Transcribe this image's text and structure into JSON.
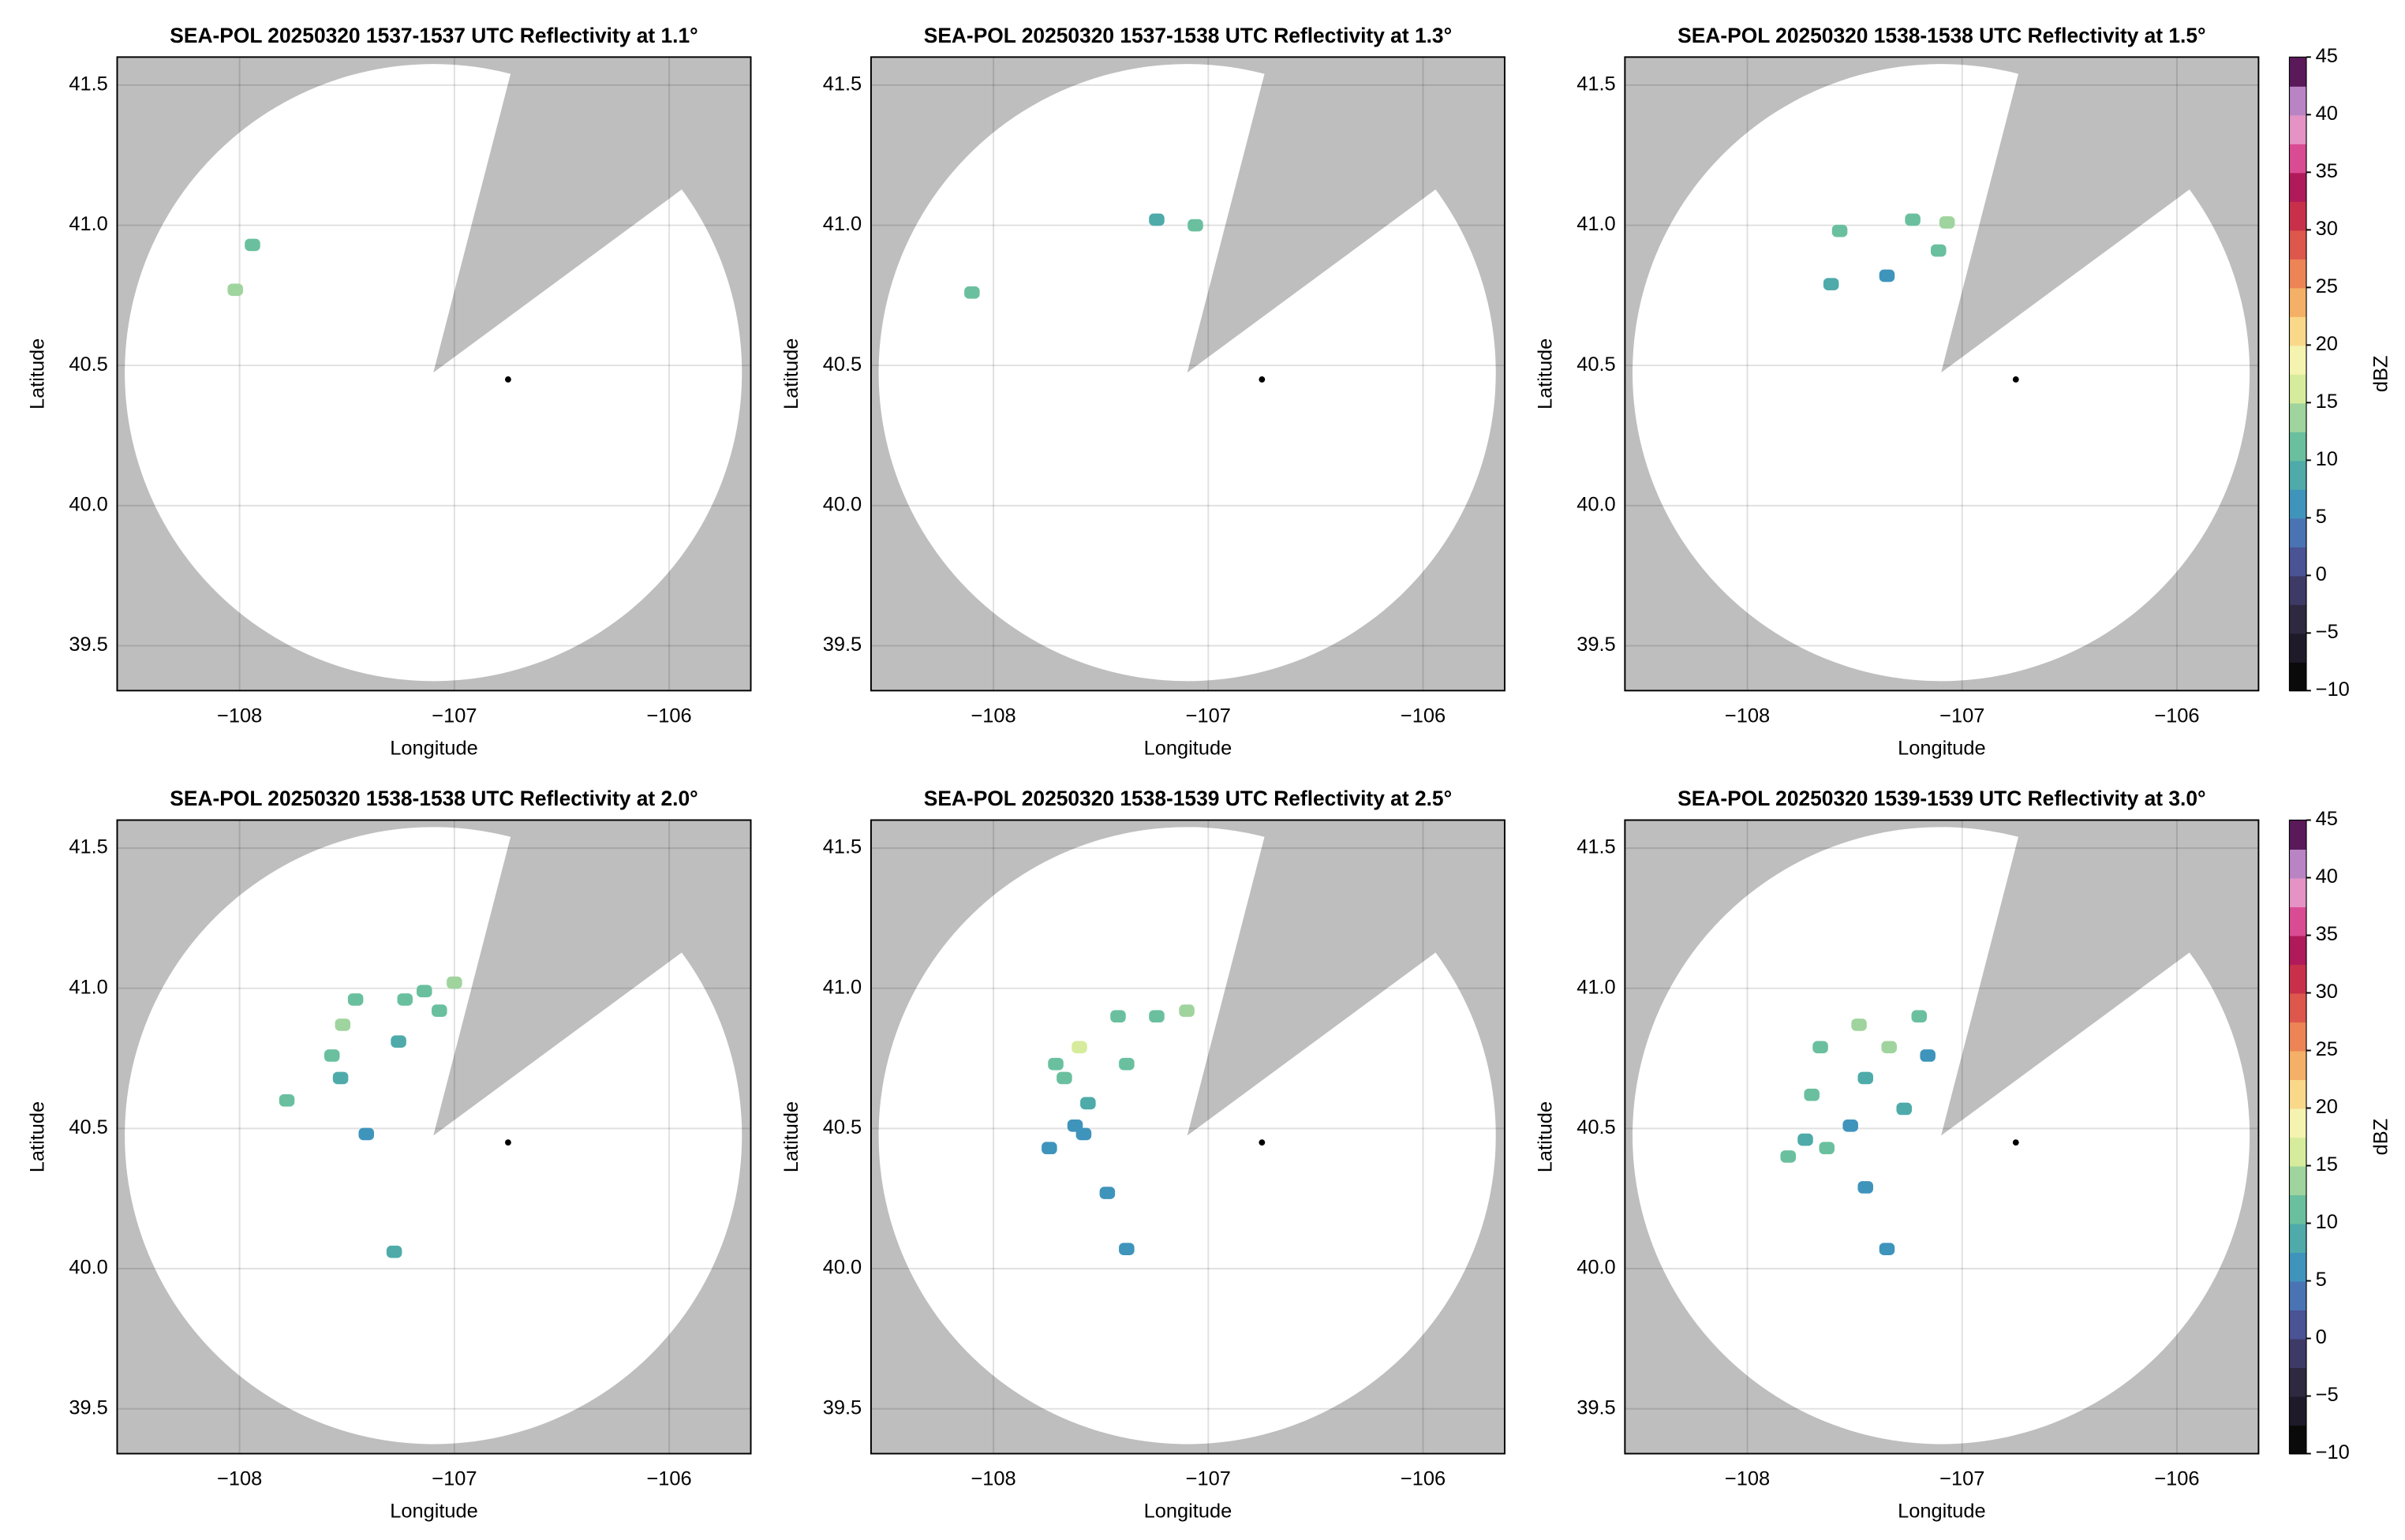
{
  "colorbar": {
    "label": "dBZ",
    "lim": [
      -10,
      45
    ],
    "ticks": [
      {
        "value": -10,
        "label": "−10"
      },
      {
        "value": -5,
        "label": "−5"
      },
      0,
      5,
      10,
      15,
      20,
      25,
      30,
      35,
      40,
      45
    ],
    "colors": [
      "#0a0a0a",
      "#1e1a2a",
      "#2e2840",
      "#3d3a66",
      "#4a5394",
      "#4a73b4",
      "#3f94bc",
      "#4eabaa",
      "#6ac09e",
      "#a0d49e",
      "#d6ec9c",
      "#f5f3b0",
      "#fad88a",
      "#f4b066",
      "#ec8455",
      "#dd574d",
      "#c83049",
      "#b01a5a",
      "#d94c94",
      "#e493c4",
      "#b884c4",
      "#5a1a5a"
    ]
  },
  "chart_data": [
    {
      "type": "heatmap",
      "title": "SEA-POL 20250320 1537-1537 UTC Reflectivity at 1.1°",
      "xlabel": "Longitude",
      "ylabel": "Latitude",
      "xlim": [
        -108.57,
        -105.62
      ],
      "ylim": [
        39.34,
        41.6
      ],
      "xticks": [
        {
          "value": -108,
          "label": "−108"
        },
        {
          "value": -107,
          "label": "−107"
        },
        {
          "value": -106,
          "label": "−106"
        }
      ],
      "yticks": [
        39.5,
        {
          "value": 40,
          "label": "40.0"
        },
        40.5,
        {
          "value": 41,
          "label": "41.0"
        },
        41.5
      ],
      "grid": true,
      "colorbar": false,
      "marker": {
        "x": -106.75,
        "y": 40.45
      },
      "echoes": {
        "x": [
          -107.94,
          -108.02
        ],
        "y": [
          40.93,
          40.77
        ],
        "values": [
          12,
          13
        ]
      }
    },
    {
      "type": "heatmap",
      "title": "SEA-POL 20250320 1537-1538 UTC Reflectivity at 1.3°",
      "xlabel": "Longitude",
      "ylabel": "Latitude",
      "xlim": [
        -108.57,
        -105.62
      ],
      "ylim": [
        39.34,
        41.6
      ],
      "xticks": [
        {
          "value": -108,
          "label": "−108"
        },
        {
          "value": -107,
          "label": "−107"
        },
        {
          "value": -106,
          "label": "−106"
        }
      ],
      "yticks": [
        39.5,
        {
          "value": 40,
          "label": "40.0"
        },
        40.5,
        {
          "value": 41,
          "label": "41.0"
        },
        41.5
      ],
      "grid": true,
      "colorbar": false,
      "marker": {
        "x": -106.75,
        "y": 40.45
      },
      "echoes": {
        "x": [
          -108.1,
          -107.06,
          -107.24
        ],
        "y": [
          40.76,
          41.0,
          41.02
        ],
        "values": [
          12,
          10,
          8
        ]
      }
    },
    {
      "type": "heatmap",
      "title": "SEA-POL 20250320 1538-1538 UTC Reflectivity at 1.5°",
      "xlabel": "Longitude",
      "ylabel": "Latitude",
      "xlim": [
        -108.57,
        -105.62
      ],
      "ylim": [
        39.34,
        41.6
      ],
      "xticks": [
        {
          "value": -108,
          "label": "−108"
        },
        {
          "value": -107,
          "label": "−107"
        },
        {
          "value": -106,
          "label": "−106"
        }
      ],
      "yticks": [
        39.5,
        {
          "value": 40,
          "label": "40.0"
        },
        40.5,
        {
          "value": 41,
          "label": "41.0"
        },
        41.5
      ],
      "grid": true,
      "colorbar": true,
      "marker": {
        "x": -106.75,
        "y": 40.45
      },
      "echoes": {
        "x": [
          -107.57,
          -107.23,
          -107.07,
          -107.35,
          -107.61,
          -107.11
        ],
        "y": [
          40.98,
          41.02,
          41.01,
          40.82,
          40.79,
          40.91
        ],
        "values": [
          11,
          12,
          13,
          5,
          9,
          10
        ]
      }
    },
    {
      "type": "heatmap",
      "title": "SEA-POL 20250320 1538-1538 UTC Reflectivity at 2.0°",
      "xlabel": "Longitude",
      "ylabel": "Latitude",
      "xlim": [
        -108.57,
        -105.62
      ],
      "ylim": [
        39.34,
        41.6
      ],
      "xticks": [
        {
          "value": -108,
          "label": "−108"
        },
        {
          "value": -107,
          "label": "−107"
        },
        {
          "value": -106,
          "label": "−106"
        }
      ],
      "yticks": [
        39.5,
        {
          "value": 40,
          "label": "40.0"
        },
        40.5,
        {
          "value": 41,
          "label": "41.0"
        },
        41.5
      ],
      "grid": true,
      "colorbar": false,
      "marker": {
        "x": -106.75,
        "y": 40.45
      },
      "echoes": {
        "x": [
          -107.46,
          -107.52,
          -107.57,
          -107.53,
          -107.26,
          -107.14,
          -107.0,
          -107.07,
          -107.23,
          -107.41,
          -107.28,
          -107.78
        ],
        "y": [
          40.96,
          40.87,
          40.76,
          40.68,
          40.81,
          40.99,
          41.02,
          40.92,
          40.96,
          40.48,
          40.06,
          40.6
        ],
        "values": [
          11,
          13,
          12,
          9,
          8,
          12,
          14,
          11,
          10,
          6,
          9,
          10
        ]
      }
    },
    {
      "type": "heatmap",
      "title": "SEA-POL 20250320 1538-1539 UTC Reflectivity at 2.5°",
      "xlabel": "Longitude",
      "ylabel": "Latitude",
      "xlim": [
        -108.57,
        -105.62
      ],
      "ylim": [
        39.34,
        41.6
      ],
      "xticks": [
        {
          "value": -108,
          "label": "−108"
        },
        {
          "value": -107,
          "label": "−107"
        },
        {
          "value": -106,
          "label": "−106"
        }
      ],
      "yticks": [
        39.5,
        {
          "value": 40,
          "label": "40.0"
        },
        40.5,
        {
          "value": 41,
          "label": "41.0"
        },
        41.5
      ],
      "grid": true,
      "colorbar": false,
      "marker": {
        "x": -106.75,
        "y": 40.45
      },
      "echoes": {
        "x": [
          -107.6,
          -107.67,
          -107.56,
          -107.58,
          -107.38,
          -107.42,
          -107.24,
          -107.1,
          -107.74,
          -107.47,
          -107.38,
          -107.62,
          -107.71
        ],
        "y": [
          40.79,
          40.68,
          40.59,
          40.48,
          40.73,
          40.9,
          40.9,
          40.92,
          40.43,
          40.27,
          40.07,
          40.51,
          40.73
        ],
        "values": [
          15,
          11,
          8,
          6,
          10,
          12,
          11,
          13,
          7,
          5,
          6,
          7,
          12
        ]
      }
    },
    {
      "type": "heatmap",
      "title": "SEA-POL 20250320 1539-1539 UTC Reflectivity at 3.0°",
      "xlabel": "Longitude",
      "ylabel": "Latitude",
      "xlim": [
        -108.57,
        -105.62
      ],
      "ylim": [
        39.34,
        41.6
      ],
      "xticks": [
        {
          "value": -108,
          "label": "−108"
        },
        {
          "value": -107,
          "label": "−107"
        },
        {
          "value": -106,
          "label": "−106"
        }
      ],
      "yticks": [
        39.5,
        {
          "value": 40,
          "label": "40.0"
        },
        40.5,
        {
          "value": 41,
          "label": "41.0"
        },
        41.5
      ],
      "grid": true,
      "colorbar": true,
      "marker": {
        "x": -106.75,
        "y": 40.45
      },
      "echoes": {
        "x": [
          -107.66,
          -107.7,
          -107.73,
          -107.63,
          -107.48,
          -107.34,
          -107.45,
          -107.52,
          -107.2,
          -107.16,
          -107.45,
          -107.35,
          -107.81,
          -107.27
        ],
        "y": [
          40.79,
          40.62,
          40.46,
          40.43,
          40.87,
          40.79,
          40.68,
          40.51,
          40.9,
          40.76,
          40.29,
          40.07,
          40.4,
          40.57
        ],
        "values": [
          12,
          10,
          8,
          11,
          14,
          13,
          9,
          7,
          12,
          6,
          6,
          7,
          10,
          8
        ]
      }
    }
  ]
}
